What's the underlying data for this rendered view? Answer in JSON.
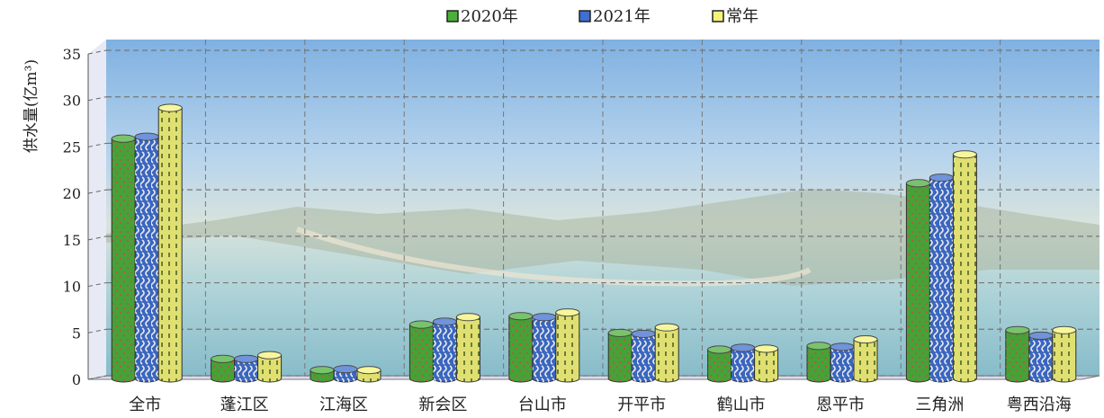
{
  "chart_data": {
    "type": "bar",
    "title": "",
    "xlabel": "",
    "ylabel": "供水量(亿m³)",
    "ylim": [
      0,
      35
    ],
    "yticks": [
      0,
      5,
      10,
      15,
      20,
      25,
      30,
      35
    ],
    "grid": true,
    "legend_position": "top-center",
    "categories": [
      "全市",
      "蓬江区",
      "江海区",
      "新会区",
      "台山市",
      "开平市",
      "鹤山市",
      "恩平市",
      "三角洲",
      "粤西沿海"
    ],
    "series": [
      {
        "name": "2020年",
        "color": "#4caf3c",
        "values": [
          25.8,
          2.1,
          0.9,
          5.8,
          6.7,
          4.9,
          3.1,
          3.5,
          21.0,
          5.2
        ]
      },
      {
        "name": "2021年",
        "color": "#3f6fd1",
        "values": [
          26.0,
          2.1,
          1.0,
          6.1,
          6.6,
          4.8,
          3.3,
          3.4,
          21.6,
          4.6
        ]
      },
      {
        "name": "常年",
        "color": "#f3f37c",
        "values": [
          29.1,
          2.5,
          0.9,
          6.6,
          7.1,
          5.5,
          3.2,
          4.2,
          24.1,
          5.2
        ]
      }
    ]
  }
}
